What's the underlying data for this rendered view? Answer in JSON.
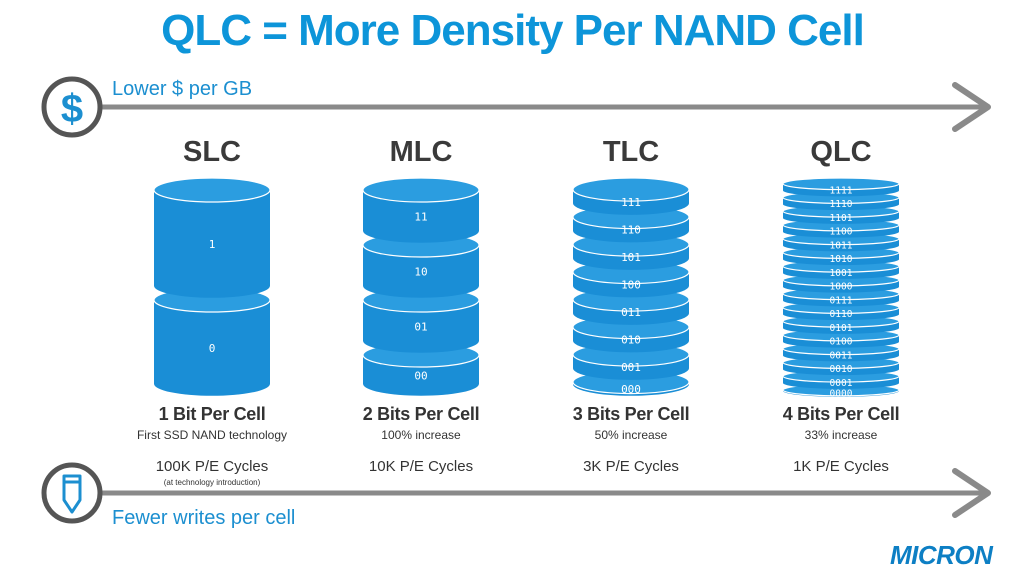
{
  "title": "QLC = More Density Per NAND Cell",
  "top_axis": {
    "label": "Lower $ per GB",
    "icon": "dollar-icon"
  },
  "bottom_axis": {
    "label": "Fewer writes per cell",
    "icon": "pencil-icon"
  },
  "colors": {
    "accent": "#0d95d9",
    "cylinder": "#1a8ed6",
    "ring": "#555555",
    "arrow": "#8a8a8a"
  },
  "cell_types": [
    {
      "name": "SLC",
      "bits": "1 Bit Per Cell",
      "note": "First SSD NAND technology",
      "cycles": "100K P/E Cycles",
      "cycles_note": "(at technology introduction)",
      "levels": [
        "1",
        "0"
      ]
    },
    {
      "name": "MLC",
      "bits": "2 Bits Per Cell",
      "note": "100% increase",
      "cycles": "10K P/E Cycles",
      "levels": [
        "11",
        "10",
        "01",
        "00"
      ]
    },
    {
      "name": "TLC",
      "bits": "3 Bits Per Cell",
      "note": "50% increase",
      "cycles": "3K P/E Cycles",
      "levels": [
        "111",
        "110",
        "101",
        "100",
        "011",
        "010",
        "001",
        "000"
      ]
    },
    {
      "name": "QLC",
      "bits": "4 Bits Per Cell",
      "note": "33% increase",
      "cycles": "1K P/E Cycles",
      "levels": [
        "1111",
        "1110",
        "1101",
        "1100",
        "1011",
        "1010",
        "1001",
        "1000",
        "0111",
        "0110",
        "0101",
        "0100",
        "0011",
        "0010",
        "0001",
        "0000"
      ]
    }
  ],
  "logo": "MICRON"
}
